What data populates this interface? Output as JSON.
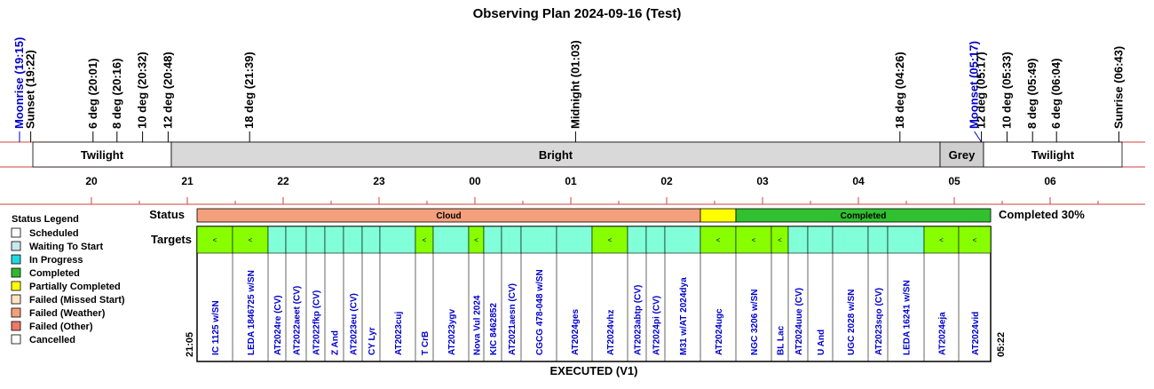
{
  "title": "Observing Plan 2024-09-16 (Test)",
  "events": [
    {
      "label": "Moonrise (19:15)",
      "color": "#0000cc"
    },
    {
      "label": "Sunset (19:22)",
      "color": "#000000"
    },
    {
      "label": "6 deg (20:01)",
      "color": "#000000"
    },
    {
      "label": "8 deg (20:16)",
      "color": "#000000"
    },
    {
      "label": "10 deg (20:32)",
      "color": "#000000"
    },
    {
      "label": "12 deg (20:48)",
      "color": "#000000"
    },
    {
      "label": "18 deg (21:39)",
      "color": "#000000"
    },
    {
      "label": "Midnight (01:03)",
      "color": "#000000"
    },
    {
      "label": "18 deg (04:26)",
      "color": "#000000"
    },
    {
      "label": "Moonset (05:17)",
      "color": "#0000cc"
    },
    {
      "label": "12 deg (05:17)",
      "color": "#000000"
    },
    {
      "label": "10 deg (05:33)",
      "color": "#000000"
    },
    {
      "label": "8 deg (05:49)",
      "color": "#000000"
    },
    {
      "label": "6 deg (06:04)",
      "color": "#000000"
    },
    {
      "label": "Sunrise (06:43)",
      "color": "#000000"
    }
  ],
  "bands": [
    {
      "label": "Twilight",
      "color": "#ffffff"
    },
    {
      "label": "Bright",
      "color": "#d9d9d9"
    },
    {
      "label": "Grey",
      "color": "#cfcfcf"
    },
    {
      "label": "Twilight",
      "color": "#ffffff"
    }
  ],
  "hours": [
    "20",
    "21",
    "22",
    "23",
    "00",
    "01",
    "02",
    "03",
    "04",
    "05",
    "06"
  ],
  "legend": {
    "title": "Status Legend",
    "items": [
      {
        "label": "Scheduled",
        "color": "#ffffff"
      },
      {
        "label": "Waiting To Start",
        "color": "#c8e8f0"
      },
      {
        "label": "In Progress",
        "color": "#20d8e0"
      },
      {
        "label": "Completed",
        "color": "#30b830"
      },
      {
        "label": "Partially Completed",
        "color": "#ffff00"
      },
      {
        "label": "Failed (Missed Start)",
        "color": "#ffe4c0"
      },
      {
        "label": "Failed (Weather)",
        "color": "#f4a07c"
      },
      {
        "label": "Failed (Other)",
        "color": "#f07868"
      },
      {
        "label": "Cancelled",
        "color": "#ffffff"
      }
    ]
  },
  "status": {
    "label": "Status",
    "segments": [
      {
        "label": "Cloud",
        "color": "#f4a07c"
      },
      {
        "color": "#ffff00"
      },
      {
        "label": "Completed",
        "color": "#30c030"
      }
    ],
    "summary": "Completed 30%"
  },
  "targets": {
    "label": "Targets",
    "start": "21:05",
    "end": "05:22",
    "footer": "EXECUTED (V1)",
    "items": [
      {
        "name": "IC 1125 w/SN",
        "color": "#88ff00",
        "marker": "<"
      },
      {
        "name": "LEDA 1846725 w/SN",
        "color": "#88ff00",
        "marker": "<"
      },
      {
        "name": "AT2024re (CV)",
        "color": "#80ffd8"
      },
      {
        "name": "AT2022aeet (CV)",
        "color": "#80ffd8"
      },
      {
        "name": "AT2022fkp (CV)",
        "color": "#80ffd8"
      },
      {
        "name": "Z And",
        "color": "#80ffd8"
      },
      {
        "name": "AT2023eu (CV)",
        "color": "#80ffd8"
      },
      {
        "name": "CY Lyr",
        "color": "#80ffd8"
      },
      {
        "name": "AT2023cuj",
        "color": "#80ffd8"
      },
      {
        "name": "T CrB",
        "color": "#88ff00",
        "marker": "<"
      },
      {
        "name": "AT2023ygv",
        "color": "#80ffd8"
      },
      {
        "name": "Nova Vul 2024",
        "color": "#88ff00",
        "marker": "<"
      },
      {
        "name": "KIC 8462852",
        "color": "#80ffd8"
      },
      {
        "name": "AT2021aesn (CV)",
        "color": "#80ffd8"
      },
      {
        "name": "CGCG 478-048 w/SN",
        "color": "#80ffd8"
      },
      {
        "name": "AT2024ges",
        "color": "#80ffd8"
      },
      {
        "name": "AT2024vhz",
        "color": "#88ff00",
        "marker": "<"
      },
      {
        "name": "AT2023abtp (CV)",
        "color": "#80ffd8"
      },
      {
        "name": "AT2024pi (CV)",
        "color": "#80ffd8"
      },
      {
        "name": "M31 w/AT 2024dya",
        "color": "#80ffd8"
      },
      {
        "name": "AT2024ugc",
        "color": "#88ff00",
        "marker": "<"
      },
      {
        "name": "NGC 3206 w/SN",
        "color": "#88ff00",
        "marker": "<"
      },
      {
        "name": "BL Lac",
        "color": "#88ff00",
        "marker": "<"
      },
      {
        "name": "AT2024uue (CV)",
        "color": "#80ffd8"
      },
      {
        "name": "U And",
        "color": "#80ffd8"
      },
      {
        "name": "UGC 2028 w/SN",
        "color": "#80ffd8"
      },
      {
        "name": "AT2023sqo (CV)",
        "color": "#80ffd8"
      },
      {
        "name": "LEDA 16241 w/SN",
        "color": "#80ffd8"
      },
      {
        "name": "AT2024eja",
        "color": "#88ff00",
        "marker": "<"
      },
      {
        "name": "AT2024vid",
        "color": "#88ff00",
        "marker": "<"
      }
    ]
  }
}
